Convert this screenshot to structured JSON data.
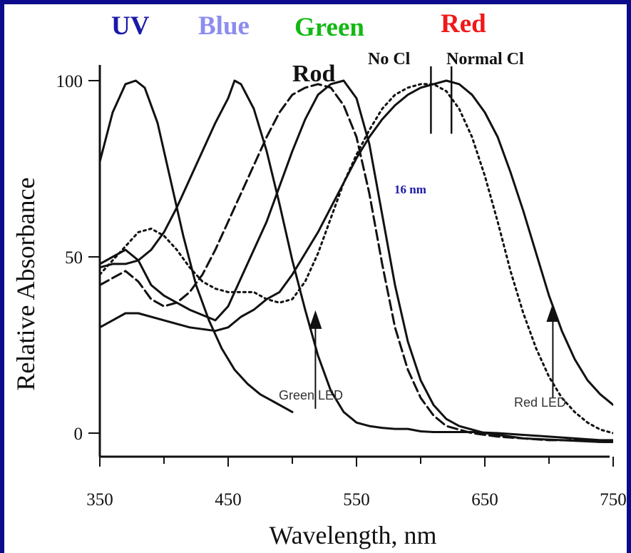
{
  "chart_data": {
    "type": "line",
    "xlabel": "Wavelength, nm",
    "ylabel": "Relative Absorbance",
    "xlim": [
      350,
      750
    ],
    "ylim": [
      -5,
      102
    ],
    "x_ticks": [
      350,
      450,
      550,
      650,
      750
    ],
    "x_minor_ticks": [
      400,
      500,
      600,
      700
    ],
    "y_ticks": [
      0,
      50,
      100
    ],
    "grid": false,
    "legend": "none",
    "header_labels": [
      {
        "text": "UV",
        "color": "#1a1aa8"
      },
      {
        "text": "Blue",
        "color": "#8c8cf0"
      },
      {
        "text": "Green",
        "color": "#14b814"
      },
      {
        "text": "Red",
        "color": "#f01818"
      }
    ],
    "annotations": {
      "rod": "Rod",
      "no_cl": "No Cl",
      "normal_cl": "Normal Cl",
      "shift": "16 nm",
      "green_led": "Green LED",
      "red_led": "Red LED"
    },
    "markers": [
      {
        "type": "vline",
        "x": 608,
        "y_range": [
          90,
          100
        ]
      },
      {
        "type": "vline",
        "x": 624,
        "y_range": [
          90,
          100
        ]
      },
      {
        "type": "arrow",
        "x": 518,
        "y_from": 15,
        "y_to": 32
      },
      {
        "type": "arrow",
        "x": 703,
        "y_from": 18,
        "y_to": 34
      }
    ],
    "series": [
      {
        "style": "solid",
        "x": [
          350,
          360,
          370,
          378,
          385,
          395,
          405,
          415,
          425,
          435,
          445,
          455,
          465,
          475,
          485,
          495,
          500
        ],
        "y": [
          77,
          91,
          99,
          100,
          98,
          88,
          72,
          56,
          42,
          32,
          24,
          18,
          14,
          11,
          9,
          7,
          6
        ]
      },
      {
        "style": "solid",
        "x": [
          350,
          360,
          370,
          380,
          390,
          400,
          410,
          420,
          430,
          440,
          450,
          455,
          460,
          470,
          480,
          490,
          500,
          510,
          520,
          530,
          540,
          550,
          560,
          570,
          580,
          590,
          600,
          610,
          620,
          640,
          660,
          680,
          700,
          720,
          740,
          750
        ],
        "y": [
          47,
          48,
          48,
          49,
          52,
          57,
          64,
          72,
          80,
          88,
          95,
          100,
          99,
          92,
          80,
          65,
          49,
          35,
          22,
          12,
          6,
          3,
          2,
          1.5,
          1.2,
          1.2,
          0.5,
          0.3,
          0.3,
          0.3,
          0,
          -0.5,
          -1,
          -1.5,
          -2,
          -2
        ]
      },
      {
        "style": "solid",
        "x": [
          350,
          360,
          370,
          380,
          390,
          400,
          420,
          440,
          450,
          460,
          470,
          480,
          490,
          500,
          510,
          520,
          530,
          540,
          550,
          560,
          570,
          580,
          590,
          600,
          610,
          620,
          630,
          650,
          680,
          710,
          740,
          750
        ],
        "y": [
          48,
          50,
          52,
          49,
          42,
          39,
          35,
          32,
          36,
          44,
          52,
          60,
          70,
          80,
          89,
          96,
          99,
          100,
          95,
          82,
          62,
          42,
          26,
          15,
          8,
          4,
          2,
          0,
          -1.5,
          -2,
          -2.5,
          -2.5
        ]
      },
      {
        "style": "dashed",
        "x": [
          350,
          360,
          370,
          380,
          390,
          400,
          410,
          420,
          430,
          440,
          450,
          460,
          470,
          480,
          490,
          500,
          510,
          520,
          530,
          540,
          550,
          560,
          570,
          580,
          590,
          600,
          610,
          620,
          640,
          660,
          680,
          700,
          720,
          740,
          750
        ],
        "y": [
          42,
          44,
          46,
          43,
          38,
          36,
          37,
          40,
          45,
          52,
          60,
          68,
          76,
          84,
          91,
          96,
          98,
          99,
          98,
          93,
          84,
          68,
          48,
          30,
          18,
          10,
          5,
          2,
          0,
          -1,
          -1.5,
          -2,
          -2,
          -2.5,
          -2.5
        ]
      },
      {
        "style": "dotted",
        "x": [
          350,
          360,
          370,
          380,
          390,
          400,
          410,
          420,
          430,
          440,
          450,
          460,
          470,
          480,
          490,
          500,
          510,
          520,
          530,
          540,
          550,
          560,
          570,
          580,
          590,
          600,
          610,
          620,
          630,
          640,
          650,
          660,
          670,
          680,
          690,
          700,
          710,
          720,
          730,
          740,
          750
        ],
        "y": [
          45,
          49,
          53,
          57,
          58,
          56,
          52,
          47,
          43,
          41,
          40,
          40,
          40,
          38,
          37,
          38,
          43,
          51,
          61,
          71,
          79,
          86,
          92,
          96,
          98,
          99,
          99,
          97,
          92,
          84,
          73,
          60,
          46,
          34,
          24,
          16,
          10,
          6,
          3,
          1,
          0
        ]
      },
      {
        "style": "solid",
        "x": [
          350,
          360,
          370,
          380,
          400,
          420,
          440,
          450,
          460,
          470,
          480,
          490,
          500,
          510,
          520,
          530,
          540,
          550,
          560,
          570,
          580,
          590,
          600,
          610,
          620,
          630,
          640,
          650,
          660,
          670,
          680,
          690,
          700,
          710,
          720,
          730,
          740,
          750
        ],
        "y": [
          30,
          32,
          34,
          34,
          32,
          30,
          29,
          30,
          33,
          35,
          38,
          40,
          45,
          51,
          57,
          64,
          71,
          78,
          84,
          89,
          93,
          96,
          98,
          99,
          100,
          99,
          96,
          91,
          84,
          74,
          63,
          51,
          39,
          29,
          21,
          15,
          11,
          8
        ]
      }
    ]
  }
}
